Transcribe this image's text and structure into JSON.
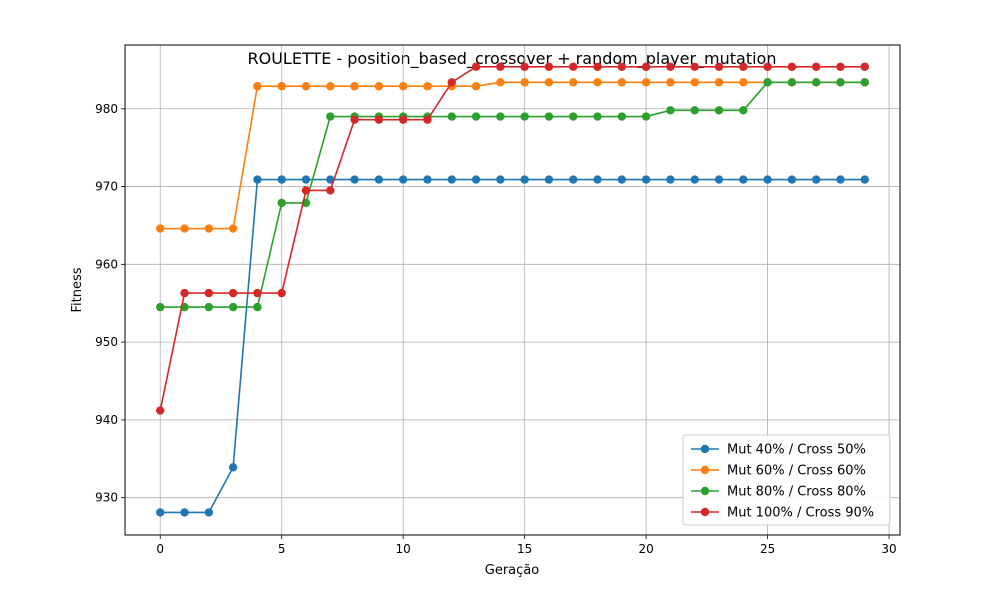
{
  "chart_data": {
    "type": "line",
    "title": "ROULETTE - position_based_crossover + random_player_mutation",
    "xlabel": "Geração",
    "ylabel": "Fitness",
    "xlim": [
      -1.45,
      30.45
    ],
    "ylim": [
      925.2,
      988.2
    ],
    "xticks": [
      0,
      5,
      10,
      15,
      20,
      25,
      30
    ],
    "yticks": [
      930,
      940,
      950,
      960,
      970,
      980
    ],
    "grid": true,
    "legend_position": "lower-right",
    "x": [
      0,
      1,
      2,
      3,
      4,
      5,
      6,
      7,
      8,
      9,
      10,
      11,
      12,
      13,
      14,
      15,
      16,
      17,
      18,
      19,
      20,
      21,
      22,
      23,
      24,
      25,
      26,
      27,
      28,
      29
    ],
    "series": [
      {
        "name": "Mut 40% / Cross 50%",
        "color": "#1f77b4",
        "values": [
          928.1,
          928.1,
          928.1,
          933.9,
          970.9,
          970.9,
          970.9,
          970.9,
          970.9,
          970.9,
          970.9,
          970.9,
          970.9,
          970.9,
          970.9,
          970.9,
          970.9,
          970.9,
          970.9,
          970.9,
          970.9,
          970.9,
          970.9,
          970.9,
          970.9,
          970.9,
          970.9,
          970.9,
          970.9,
          970.9
        ]
      },
      {
        "name": "Mut 60% / Cross 60%",
        "color": "#ff7f0e",
        "values": [
          964.6,
          964.6,
          964.6,
          964.6,
          982.9,
          982.9,
          982.9,
          982.9,
          982.9,
          982.9,
          982.9,
          982.9,
          982.9,
          982.9,
          983.4,
          983.4,
          983.4,
          983.4,
          983.4,
          983.4,
          983.4,
          983.4,
          983.4,
          983.4,
          983.4,
          983.4,
          983.4,
          983.4,
          983.4,
          983.4
        ]
      },
      {
        "name": "Mut 80% / Cross 80%",
        "color": "#2ca02c",
        "values": [
          954.5,
          954.5,
          954.5,
          954.5,
          954.5,
          967.9,
          967.9,
          979.0,
          979.0,
          979.0,
          979.0,
          979.0,
          979.0,
          979.0,
          979.0,
          979.0,
          979.0,
          979.0,
          979.0,
          979.0,
          979.0,
          979.8,
          979.8,
          979.8,
          979.8,
          983.4,
          983.4,
          983.4,
          983.4,
          983.4
        ]
      },
      {
        "name": "Mut 100% / Cross 90%",
        "color": "#d62728",
        "values": [
          941.2,
          956.3,
          956.3,
          956.3,
          956.3,
          956.3,
          969.5,
          969.5,
          978.6,
          978.6,
          978.6,
          978.6,
          983.4,
          985.4,
          985.4,
          985.4,
          985.4,
          985.4,
          985.4,
          985.4,
          985.4,
          985.4,
          985.4,
          985.4,
          985.4,
          985.4,
          985.4,
          985.4,
          985.4,
          985.4
        ]
      }
    ]
  }
}
